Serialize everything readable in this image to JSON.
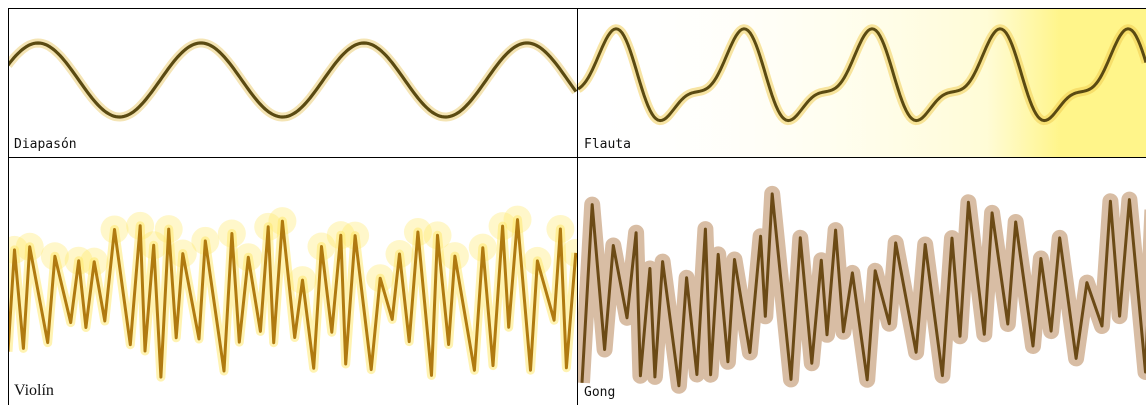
{
  "panels": [
    {
      "id": "diapason",
      "label": "Diapasón",
      "style": "mono",
      "kind": "sine",
      "stroke": "#5a4a12",
      "glow": "#e9c96a",
      "bg": "#ffffff",
      "tint": "#fff6b0"
    },
    {
      "id": "flauta",
      "label": "Flauta",
      "style": "mono",
      "kind": "flute",
      "stroke": "#5a4a12",
      "glow": "#efc94a",
      "bg": "#ffffff",
      "tint": "#fff58a"
    },
    {
      "id": "violin",
      "label": "Violín",
      "style": "serif",
      "kind": "violin",
      "stroke": "#b07a10",
      "glow": "#ffe866",
      "bg": "#ffffff",
      "tint": "#ffd0a0"
    },
    {
      "id": "gong",
      "label": "Gong",
      "style": "mono",
      "kind": "gong",
      "stroke": "#6b4a16",
      "glow": "#b8865a",
      "bg": "#ffffff",
      "tint": "#f2c8a8"
    }
  ],
  "colors": {
    "border": "#000000"
  }
}
